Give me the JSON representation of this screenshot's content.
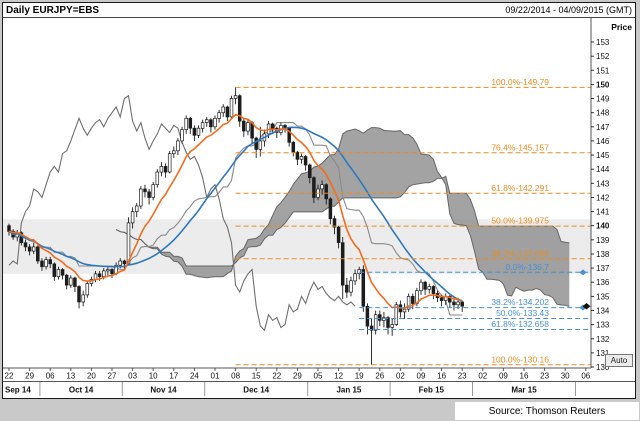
{
  "header": {
    "title": "Daily EURJPY=EBS",
    "date_range": "09/22/2014 - 04/09/2015 (GMT)"
  },
  "auto_button_label": "Auto",
  "source": "Source: Thomson Reuters",
  "chart_data": {
    "type": "candlestick",
    "symbol": "EURJPY=EBS",
    "interval": "Daily",
    "visible_range": "09/22/2014 - 04/09/2015 (GMT)",
    "ylim": [
      129.8,
      154.6
    ],
    "y_axis": {
      "title": "Price",
      "ticks": [
        153,
        152,
        151,
        150,
        149,
        148,
        147,
        146,
        145,
        144,
        143,
        142,
        141,
        140,
        139,
        138,
        137,
        136,
        135,
        134,
        133,
        132,
        131,
        130
      ],
      "bold": [
        150,
        140
      ]
    },
    "x_axis": {
      "week_tick_labels": [
        "22",
        "29",
        "06",
        "13",
        "20",
        "27",
        "03",
        "10",
        "17",
        "24",
        "01",
        "08",
        "15",
        "22",
        "29",
        "05",
        "12",
        "19",
        "26",
        "02",
        "09",
        "16",
        "23",
        "02",
        "09",
        "16",
        "23",
        "30",
        "06"
      ],
      "month_labels": [
        {
          "label": "Sep 14",
          "from": 0,
          "to": 1
        },
        {
          "label": "Oct 14",
          "from": 2,
          "to": 5
        },
        {
          "label": "Nov 14",
          "from": 6,
          "to": 9
        },
        {
          "label": "Dec 14",
          "from": 10,
          "to": 14
        },
        {
          "label": "Jan 15",
          "from": 15,
          "to": 18
        },
        {
          "label": "Feb 15",
          "from": 19,
          "to": 22
        },
        {
          "label": "Mar 15",
          "from": 23,
          "to": 27
        }
      ]
    },
    "band": {
      "top": 140.45,
      "bottom": 136.6,
      "color": "#ececec"
    },
    "last_price": 134.3,
    "overlays": {
      "ema_fast": {
        "color": "#f26c1d",
        "period": 10
      },
      "sma_slow": {
        "color": "#2e79bd",
        "period": 30
      },
      "ichimoku": {
        "cloud_color": "#8f8f8f",
        "edge_color": "#666666",
        "line_color": "#8a8a8a",
        "lagging_color": "#6f6f6f",
        "tenkan": 9,
        "kijun": 26,
        "senkou_b": 52,
        "displacement": 26
      }
    },
    "fibonacci": [
      {
        "color": "#e98b1f",
        "start_index": 55,
        "levels": [
          {
            "label": "100.0%-149.79",
            "price": 149.79
          },
          {
            "label": "76.4%-145.157",
            "price": 145.157
          },
          {
            "label": "61.8%-142.291",
            "price": 142.291
          },
          {
            "label": "50.0%-139.975",
            "price": 139.975
          },
          {
            "label": "38.2%-137.659",
            "price": 137.659
          },
          {
            "label": "100.0%-130.16",
            "price": 130.16
          }
        ]
      },
      {
        "color": "#4a90d2",
        "start_index": 85,
        "levels": [
          {
            "label": "0.0%-136.7",
            "price": 136.7
          },
          {
            "label": "38.2%-134.202",
            "price": 134.202
          },
          {
            "label": "50.0%-133.43",
            "price": 133.43
          },
          {
            "label": "61.8%-132.658",
            "price": 132.658
          }
        ]
      }
    ],
    "marker_levels": [
      136.7,
      134.202
    ],
    "candles": [
      [
        140.0,
        140.15,
        139.3,
        139.6
      ],
      [
        139.6,
        139.75,
        139.0,
        139.2
      ],
      [
        139.2,
        139.7,
        138.9,
        139.5
      ],
      [
        139.5,
        139.6,
        138.6,
        138.8
      ],
      [
        138.8,
        139.0,
        138.2,
        138.5
      ],
      [
        138.5,
        138.7,
        137.9,
        138.2
      ],
      [
        138.2,
        138.8,
        138.0,
        138.5
      ],
      [
        138.5,
        138.6,
        137.3,
        137.5
      ],
      [
        137.5,
        137.7,
        136.8,
        137.1
      ],
      [
        137.1,
        137.8,
        136.9,
        137.6
      ],
      [
        137.6,
        137.8,
        137.0,
        137.3
      ],
      [
        137.3,
        137.4,
        136.1,
        136.4
      ],
      [
        136.4,
        137.1,
        136.2,
        136.9
      ],
      [
        136.9,
        137.0,
        136.2,
        136.5
      ],
      [
        136.5,
        136.6,
        135.5,
        135.8
      ],
      [
        135.8,
        136.5,
        135.6,
        136.3
      ],
      [
        136.3,
        136.4,
        135.3,
        135.7
      ],
      [
        135.7,
        135.8,
        134.15,
        134.6
      ],
      [
        134.6,
        135.4,
        134.3,
        135.1
      ],
      [
        135.1,
        136.1,
        134.9,
        135.9
      ],
      [
        135.9,
        136.4,
        135.7,
        136.2
      ],
      [
        136.2,
        136.8,
        136.0,
        136.6
      ],
      [
        136.6,
        136.8,
        136.1,
        136.4
      ],
      [
        136.4,
        137.0,
        136.2,
        136.8
      ],
      [
        136.8,
        137.1,
        136.5,
        136.9
      ],
      [
        136.9,
        137.0,
        136.3,
        136.6
      ],
      [
        136.6,
        137.4,
        136.5,
        137.2
      ],
      [
        137.2,
        137.7,
        137.0,
        137.5
      ],
      [
        137.5,
        137.6,
        136.9,
        137.3
      ],
      [
        137.3,
        140.6,
        137.2,
        140.2
      ],
      [
        140.2,
        141.3,
        139.8,
        141.0
      ],
      [
        141.0,
        141.6,
        140.6,
        141.4
      ],
      [
        141.4,
        142.8,
        141.2,
        142.6
      ],
      [
        142.6,
        142.9,
        142.0,
        142.4
      ],
      [
        142.4,
        142.6,
        141.5,
        142.0
      ],
      [
        142.0,
        143.1,
        141.8,
        142.9
      ],
      [
        142.9,
        144.0,
        142.7,
        143.8
      ],
      [
        143.8,
        144.5,
        143.5,
        144.2
      ],
      [
        144.2,
        144.4,
        143.4,
        143.8
      ],
      [
        143.8,
        145.3,
        143.7,
        145.1
      ],
      [
        145.1,
        145.6,
        144.8,
        145.3
      ],
      [
        145.3,
        146.2,
        145.0,
        146.0
      ],
      [
        146.0,
        147.0,
        145.8,
        146.8
      ],
      [
        146.8,
        147.8,
        146.5,
        147.6
      ],
      [
        147.6,
        147.7,
        146.5,
        146.9
      ],
      [
        146.9,
        147.1,
        146.0,
        146.4
      ],
      [
        146.4,
        147.1,
        146.2,
        146.9
      ],
      [
        146.9,
        147.5,
        146.6,
        147.3
      ],
      [
        147.3,
        147.7,
        147.0,
        147.5
      ],
      [
        147.5,
        147.6,
        146.6,
        147.0
      ],
      [
        147.0,
        147.8,
        146.8,
        147.6
      ],
      [
        147.6,
        148.2,
        147.3,
        148.0
      ],
      [
        148.0,
        148.6,
        147.7,
        148.4
      ],
      [
        148.4,
        148.5,
        147.4,
        147.7
      ],
      [
        147.7,
        149.2,
        147.6,
        149.0
      ],
      [
        149.0,
        149.79,
        148.6,
        149.2
      ],
      [
        149.2,
        149.3,
        147.0,
        147.4
      ],
      [
        147.4,
        147.6,
        146.3,
        146.7
      ],
      [
        146.7,
        147.5,
        146.4,
        147.3
      ],
      [
        147.3,
        147.4,
        145.8,
        146.2
      ],
      [
        146.2,
        146.3,
        144.8,
        145.4
      ],
      [
        145.4,
        147.0,
        144.9,
        146.0
      ],
      [
        146.0,
        146.8,
        145.6,
        146.5
      ],
      [
        146.5,
        147.4,
        146.2,
        147.2
      ],
      [
        147.2,
        147.3,
        146.5,
        146.9
      ],
      [
        146.9,
        147.0,
        146.2,
        146.6
      ],
      [
        146.6,
        147.3,
        146.4,
        147.1
      ],
      [
        147.1,
        147.2,
        146.6,
        146.9
      ],
      [
        146.9,
        147.0,
        145.6,
        145.9
      ],
      [
        145.9,
        146.0,
        144.9,
        145.2
      ],
      [
        145.2,
        145.3,
        144.3,
        144.7
      ],
      [
        144.7,
        145.1,
        144.4,
        144.9
      ],
      [
        144.9,
        145.0,
        143.9,
        144.3
      ],
      [
        144.3,
        144.4,
        143.0,
        143.4
      ],
      [
        143.4,
        143.5,
        141.6,
        142.0
      ],
      [
        142.0,
        142.9,
        141.8,
        142.6
      ],
      [
        142.6,
        143.2,
        142.2,
        142.9
      ],
      [
        142.9,
        143.0,
        141.5,
        141.9
      ],
      [
        141.9,
        142.0,
        140.1,
        140.5
      ],
      [
        140.5,
        140.7,
        139.4,
        139.9
      ],
      [
        139.9,
        140.0,
        138.4,
        138.8
      ],
      [
        138.8,
        139.2,
        134.8,
        135.8
      ],
      [
        135.8,
        136.3,
        134.9,
        135.3
      ],
      [
        135.3,
        136.4,
        135.0,
        136.1
      ],
      [
        136.1,
        136.9,
        135.8,
        136.6
      ],
      [
        136.6,
        137.1,
        136.2,
        136.9
      ],
      [
        136.9,
        137.2,
        133.9,
        134.3
      ],
      [
        134.3,
        134.5,
        132.3,
        132.9
      ],
      [
        132.9,
        133.4,
        130.16,
        132.6
      ],
      [
        132.6,
        134.0,
        132.3,
        133.7
      ],
      [
        133.7,
        134.0,
        132.9,
        133.3
      ],
      [
        133.3,
        133.9,
        132.8,
        133.5
      ],
      [
        133.5,
        133.6,
        132.3,
        132.8
      ],
      [
        132.8,
        133.4,
        132.2,
        133.0
      ],
      [
        133.0,
        134.6,
        132.9,
        134.4
      ],
      [
        134.4,
        134.7,
        133.5,
        133.9
      ],
      [
        133.9,
        134.5,
        133.4,
        134.1
      ],
      [
        134.1,
        135.2,
        133.9,
        135.0
      ],
      [
        135.0,
        135.2,
        134.1,
        134.5
      ],
      [
        134.5,
        135.6,
        134.3,
        135.4
      ],
      [
        135.4,
        136.2,
        135.1,
        136.0
      ],
      [
        136.0,
        136.1,
        135.1,
        135.5
      ],
      [
        135.5,
        135.9,
        135.2,
        135.7
      ],
      [
        135.7,
        135.8,
        134.8,
        135.2
      ],
      [
        135.2,
        135.4,
        134.6,
        134.9
      ],
      [
        134.9,
        135.1,
        134.3,
        134.7
      ],
      [
        134.7,
        135.2,
        134.4,
        135.0
      ],
      [
        135.0,
        135.1,
        134.2,
        134.6
      ],
      [
        134.6,
        134.8,
        134.0,
        134.4
      ],
      [
        134.4,
        134.9,
        134.1,
        134.6
      ],
      [
        134.6,
        134.7,
        133.9,
        134.3
      ]
    ]
  }
}
